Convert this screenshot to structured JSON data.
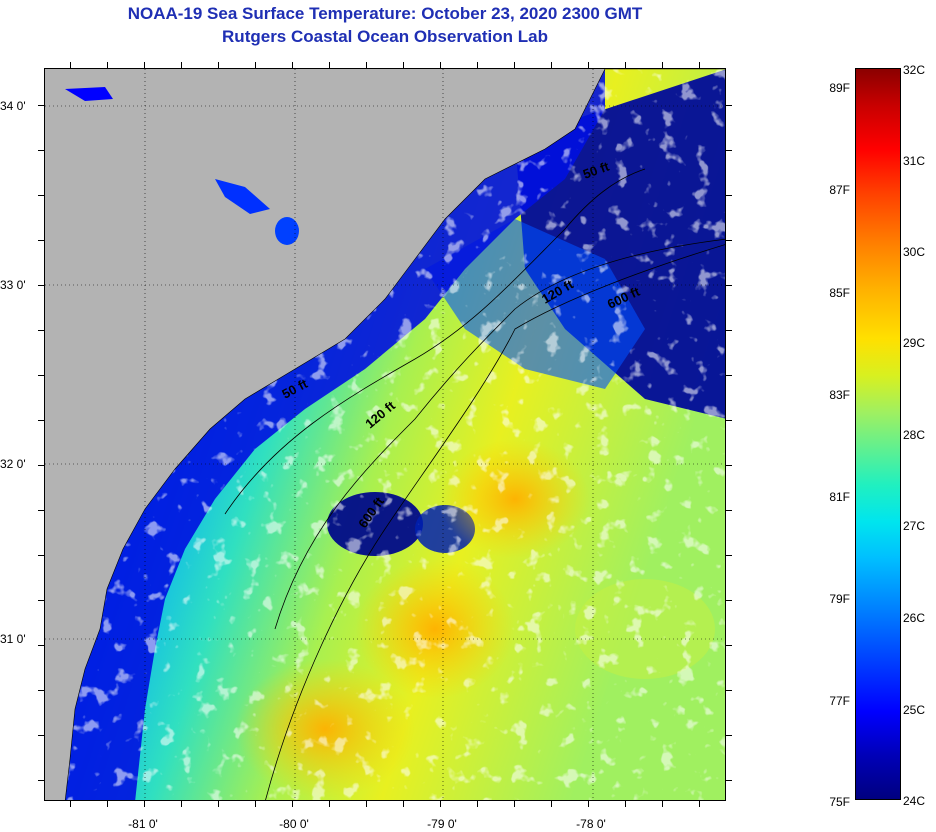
{
  "header": {
    "title_line1": "NOAA-19 Sea Surface Temperature:  October 23, 2020 2300 GMT",
    "title_line2": "Rutgers Coastal Ocean Observation Lab"
  },
  "axes": {
    "lat_labels": [
      "34 0'",
      "33 0'",
      "32 0'",
      "31 0'"
    ],
    "lon_labels": [
      "-81 0'",
      "-80 0'",
      "-79 0'",
      "-78 0'"
    ],
    "lat_values": [
      34,
      33,
      32,
      31
    ],
    "lon_values": [
      -81,
      -80,
      -79,
      -78
    ]
  },
  "contours": {
    "labels": [
      "50 ft",
      "120 ft",
      "600 ft",
      "50 ft",
      "120 ft",
      "600 ft"
    ]
  },
  "colorbar": {
    "fahrenheit": [
      "89F",
      "87F",
      "85F",
      "83F",
      "81F",
      "79F",
      "77F",
      "75F"
    ],
    "celsius": [
      "32C",
      "31C",
      "30C",
      "29C",
      "28C",
      "27C",
      "26C",
      "25C",
      "24C"
    ]
  },
  "colors": {
    "land": "#b3b3b3",
    "title": "#1f2fb4",
    "cloud": "#ffffff",
    "cold": "#000080",
    "warm": "#ffb000"
  }
}
